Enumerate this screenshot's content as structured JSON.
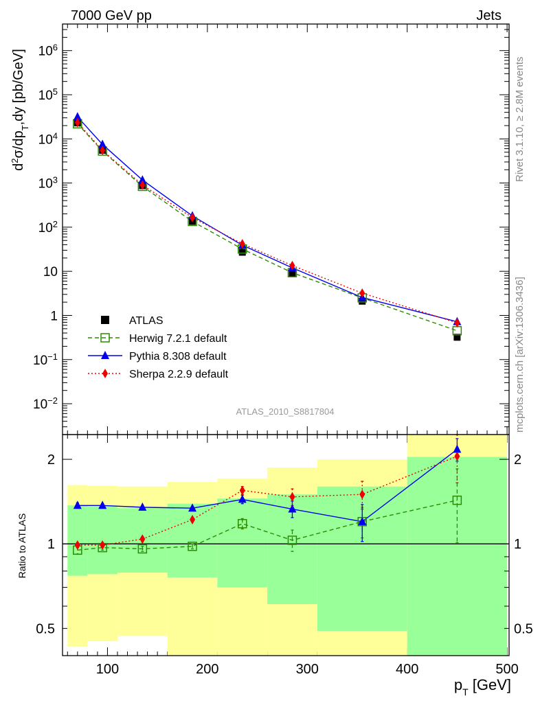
{
  "header": {
    "left_title": "7000 GeV pp",
    "right_title": "Jets"
  },
  "side_labels": {
    "rivet": "Rivet 3.1.10, ≥ 2.8M events",
    "mcplots": "mcplots.cern.ch [arXiv:1306.3436]"
  },
  "analysis_id": "ATLAS_2010_S8817804",
  "chart_data": [
    {
      "type": "line",
      "panel": "main",
      "y_scale": "log",
      "ylabel": "d²σ/dp_T,dy [pb/GeV]",
      "xlim": [
        55,
        502
      ],
      "ylim": [
        0.002,
        4000000
      ],
      "y_ticks": [
        {
          "value": 0.01,
          "base": "10",
          "exp": "−2"
        },
        {
          "value": 0.1,
          "base": "10",
          "exp": "−1"
        },
        {
          "value": 1,
          "base": "1",
          "exp": ""
        },
        {
          "value": 10,
          "base": "10",
          "exp": ""
        },
        {
          "value": 100,
          "base": "10",
          "exp": "2"
        },
        {
          "value": 1000,
          "base": "10",
          "exp": "3"
        },
        {
          "value": 10000,
          "base": "10",
          "exp": "4"
        },
        {
          "value": 100000,
          "base": "10",
          "exp": "5"
        },
        {
          "value": 1000000,
          "base": "10",
          "exp": "6"
        }
      ],
      "legend_position": "lower-left",
      "series": [
        {
          "name": "ATLAS",
          "color": "#000000",
          "marker": "filled-square",
          "line": "none",
          "x": [
            70,
            95,
            135,
            185,
            235,
            285,
            355,
            450
          ],
          "y": [
            23000,
            5500,
            870,
            135,
            27,
            9.0,
            2.1,
            0.32
          ]
        },
        {
          "name": "Herwig 7.2.1 default",
          "color": "#2d8a00",
          "marker": "open-square",
          "line": "dashed",
          "x": [
            70,
            95,
            135,
            185,
            235,
            285,
            355,
            450
          ],
          "y": [
            22000,
            5300,
            840,
            135,
            32,
            9.3,
            2.5,
            0.45
          ]
        },
        {
          "name": "Pythia 8.308 default",
          "color": "#0000ee",
          "marker": "triangle",
          "line": "solid",
          "x": [
            70,
            95,
            135,
            185,
            235,
            285,
            355,
            450
          ],
          "y": [
            31500,
            7500,
            1170,
            180,
            39,
            12,
            2.55,
            0.72
          ]
        },
        {
          "name": "Sherpa 2.2.9 default",
          "color": "#ee0000",
          "marker": "diamond",
          "line": "dotted",
          "x": [
            70,
            95,
            135,
            185,
            235,
            285,
            355,
            450
          ],
          "y": [
            23500,
            5500,
            900,
            165,
            42,
            13.5,
            3.2,
            0.68
          ]
        }
      ]
    },
    {
      "type": "line",
      "panel": "ratio",
      "y_scale": "log",
      "xlabel": "p_T [GeV]",
      "ylabel": "Ratio to ATLAS",
      "xlim": [
        55,
        502
      ],
      "ylim": [
        0.4,
        2.45
      ],
      "y_ticks": [
        0.5,
        1,
        2
      ],
      "x_ticks": [
        100,
        200,
        300,
        400,
        500
      ],
      "bands": {
        "edges": [
          60,
          80,
          110,
          160,
          210,
          260,
          310,
          400,
          500
        ],
        "yellow_low": [
          0.43,
          0.45,
          0.47,
          0.37,
          0.37,
          0.37,
          0.37,
          0.37
        ],
        "yellow_high": [
          1.62,
          1.61,
          1.6,
          1.66,
          1.71,
          1.87,
          2.0,
          2.45
        ],
        "green_low": [
          0.77,
          0.78,
          0.79,
          0.76,
          0.7,
          0.61,
          0.49,
          0.37
        ],
        "green_high": [
          1.37,
          1.36,
          1.34,
          1.39,
          1.45,
          1.5,
          1.6,
          2.04
        ],
        "yellow_color": "#ffff99",
        "green_color": "#99ff99"
      },
      "series": [
        {
          "name": "Herwig 7.2.1 default",
          "color": "#2d8a00",
          "marker": "open-square",
          "line": "dashed",
          "x": [
            70,
            95,
            135,
            185,
            235,
            285,
            355,
            450
          ],
          "y": [
            0.95,
            0.97,
            0.96,
            0.98,
            1.18,
            1.03,
            1.2,
            1.43
          ],
          "err": [
            0.03,
            0.02,
            0.02,
            0.02,
            0.05,
            0.09,
            0.15,
            0.42
          ]
        },
        {
          "name": "Pythia 8.308 default",
          "color": "#0000ee",
          "marker": "triangle",
          "line": "solid",
          "x": [
            70,
            95,
            135,
            185,
            235,
            285,
            355,
            450
          ],
          "y": [
            1.37,
            1.37,
            1.35,
            1.34,
            1.44,
            1.33,
            1.2,
            2.17
          ],
          "err": [
            0.03,
            0.02,
            0.02,
            0.02,
            0.05,
            0.09,
            0.18,
            0.2
          ]
        },
        {
          "name": "Sherpa 2.2.9 default",
          "color": "#ee0000",
          "marker": "diamond",
          "line": "dotted",
          "x": [
            70,
            95,
            135,
            185,
            235,
            285,
            355,
            450
          ],
          "y": [
            0.99,
            0.99,
            1.04,
            1.22,
            1.55,
            1.47,
            1.5,
            2.05
          ],
          "err": [
            0.02,
            0.02,
            0.02,
            0.02,
            0.05,
            0.1,
            0.17,
            0.4
          ]
        }
      ]
    }
  ]
}
